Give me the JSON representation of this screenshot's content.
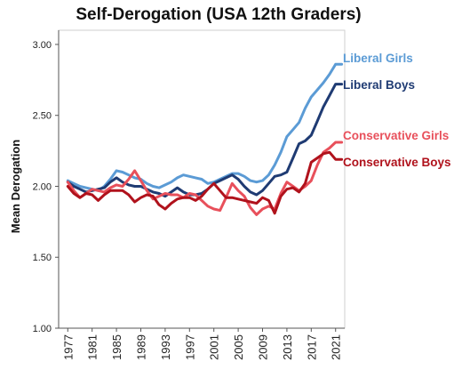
{
  "chart_data": {
    "type": "line",
    "title": "Self-Derogation (USA 12th Graders)",
    "xlabel": "",
    "ylabel": "Mean Derogation",
    "ylim": [
      1.0,
      3.1
    ],
    "yticks": [
      "1.00",
      "1.50",
      "2.00",
      "2.50",
      "3.00"
    ],
    "xlim": [
      1975.5,
      2022.5
    ],
    "xticks": [
      "1977",
      "1981",
      "1985",
      "1989",
      "1993",
      "1997",
      "2001",
      "2005",
      "2009",
      "2013",
      "2017",
      "2021"
    ],
    "grid": false,
    "legend": "direct labels at line ends (right)",
    "x": [
      1977,
      1978,
      1979,
      1980,
      1981,
      1982,
      1983,
      1984,
      1985,
      1986,
      1987,
      1988,
      1989,
      1990,
      1991,
      1992,
      1993,
      1994,
      1995,
      1996,
      1997,
      1998,
      1999,
      2000,
      2001,
      2002,
      2003,
      2004,
      2005,
      2006,
      2007,
      2008,
      2009,
      2010,
      2011,
      2012,
      2013,
      2014,
      2015,
      2016,
      2017,
      2018,
      2019,
      2020,
      2021,
      2022
    ],
    "series": [
      {
        "name": "Liberal Girls",
        "color": "#5b9bd5",
        "values": [
          2.04,
          2.02,
          2.0,
          1.99,
          1.98,
          1.97,
          2.0,
          2.05,
          2.11,
          2.1,
          2.08,
          2.06,
          2.05,
          2.02,
          2.0,
          1.99,
          2.01,
          2.03,
          2.06,
          2.08,
          2.07,
          2.06,
          2.05,
          2.02,
          2.03,
          2.05,
          2.07,
          2.09,
          2.09,
          2.07,
          2.04,
          2.03,
          2.04,
          2.08,
          2.15,
          2.24,
          2.35,
          2.4,
          2.45,
          2.55,
          2.63,
          2.68,
          2.73,
          2.79,
          2.86,
          2.86
        ]
      },
      {
        "name": "Liberal Boys",
        "color": "#1f3b73",
        "values": [
          2.03,
          2.0,
          1.98,
          1.96,
          1.97,
          1.98,
          1.99,
          2.03,
          2.06,
          2.03,
          2.01,
          2.0,
          2.0,
          1.98,
          1.96,
          1.95,
          1.93,
          1.96,
          1.99,
          1.96,
          1.94,
          1.94,
          1.95,
          1.98,
          2.02,
          2.04,
          2.06,
          2.08,
          2.05,
          2.0,
          1.96,
          1.94,
          1.97,
          2.02,
          2.07,
          2.08,
          2.1,
          2.2,
          2.3,
          2.32,
          2.36,
          2.46,
          2.56,
          2.64,
          2.72,
          2.72
        ]
      },
      {
        "name": "Conservative Girls",
        "color": "#e8505b",
        "values": [
          2.03,
          1.97,
          1.92,
          1.95,
          1.98,
          1.97,
          1.96,
          1.99,
          2.01,
          2.0,
          2.05,
          2.11,
          2.04,
          1.97,
          1.91,
          1.93,
          1.95,
          1.94,
          1.94,
          1.92,
          1.95,
          1.94,
          1.9,
          1.86,
          1.84,
          1.83,
          1.92,
          2.02,
          1.97,
          1.93,
          1.85,
          1.8,
          1.84,
          1.86,
          1.84,
          1.95,
          2.03,
          2.0,
          1.97,
          2.0,
          2.04,
          2.15,
          2.24,
          2.27,
          2.31,
          2.31
        ]
      },
      {
        "name": "Conservative Boys",
        "color": "#b0121c",
        "values": [
          2.0,
          1.95,
          1.92,
          1.95,
          1.94,
          1.9,
          1.94,
          1.97,
          1.97,
          1.97,
          1.94,
          1.89,
          1.92,
          1.94,
          1.93,
          1.87,
          1.84,
          1.88,
          1.91,
          1.92,
          1.92,
          1.9,
          1.93,
          1.98,
          2.02,
          1.97,
          1.92,
          1.92,
          1.91,
          1.9,
          1.89,
          1.88,
          1.92,
          1.9,
          1.81,
          1.93,
          1.98,
          1.99,
          1.96,
          2.02,
          2.17,
          2.2,
          2.23,
          2.24,
          2.19,
          2.19
        ]
      }
    ]
  }
}
